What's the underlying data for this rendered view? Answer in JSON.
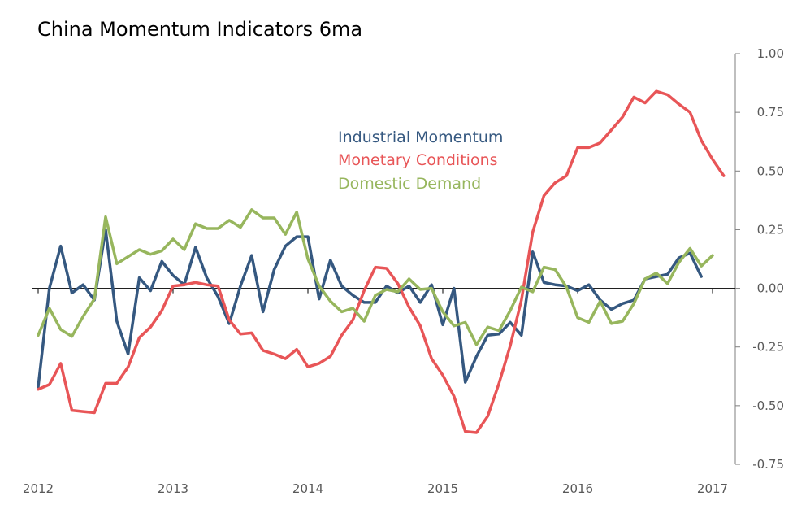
{
  "chart_data": {
    "type": "line",
    "title": "China Momentum Indicators 6ma",
    "xlabel": "",
    "ylabel": "",
    "x_ticks": [
      "2012",
      "2013",
      "2014",
      "2015",
      "2016",
      "2017"
    ],
    "x_range": [
      "2012-01",
      "2017-01"
    ],
    "y_ticks": [
      "1.00",
      "0.75",
      "0.50",
      "0.25",
      "0.00",
      "-0.25",
      "-0.50",
      "-0.75"
    ],
    "ylim": [
      -0.75,
      1.0
    ],
    "y_axis_side": "right",
    "grid": false,
    "legend_placement": "top-center",
    "series": [
      {
        "name": "Industrial Momentum",
        "color": "#355880",
        "points": [
          [
            "2012-01",
            -0.42
          ],
          [
            "2012-02",
            0.0
          ],
          [
            "2012-03",
            0.18
          ],
          [
            "2012-04",
            -0.02
          ],
          [
            "2012-05",
            0.015
          ],
          [
            "2012-06",
            -0.05
          ],
          [
            "2012-07",
            0.25
          ],
          [
            "2012-08",
            -0.14
          ],
          [
            "2012-09",
            -0.28
          ],
          [
            "2012-10",
            0.045
          ],
          [
            "2012-11",
            -0.01
          ],
          [
            "2012-12",
            0.115
          ],
          [
            "2013-01",
            0.055
          ],
          [
            "2013-02",
            0.015
          ],
          [
            "2013-03",
            0.175
          ],
          [
            "2013-04",
            0.045
          ],
          [
            "2013-05",
            -0.035
          ],
          [
            "2013-06",
            -0.15
          ],
          [
            "2013-07",
            0.01
          ],
          [
            "2013-08",
            0.14
          ],
          [
            "2013-09",
            -0.1
          ],
          [
            "2013-10",
            0.08
          ],
          [
            "2013-11",
            0.18
          ],
          [
            "2013-12",
            0.22
          ],
          [
            "2014-01",
            0.22
          ],
          [
            "2014-02",
            -0.045
          ],
          [
            "2014-03",
            0.12
          ],
          [
            "2014-04",
            0.01
          ],
          [
            "2014-05",
            -0.03
          ],
          [
            "2014-06",
            -0.06
          ],
          [
            "2014-07",
            -0.06
          ],
          [
            "2014-08",
            0.01
          ],
          [
            "2014-09",
            -0.02
          ],
          [
            "2014-10",
            0.01
          ],
          [
            "2014-11",
            -0.06
          ],
          [
            "2014-12",
            0.015
          ],
          [
            "2015-01",
            -0.155
          ],
          [
            "2015-02",
            0.0
          ],
          [
            "2015-03",
            -0.4
          ],
          [
            "2015-04",
            -0.29
          ],
          [
            "2015-05",
            -0.2
          ],
          [
            "2015-06",
            -0.195
          ],
          [
            "2015-07",
            -0.145
          ],
          [
            "2015-08",
            -0.2
          ],
          [
            "2015-09",
            0.155
          ],
          [
            "2015-10",
            0.025
          ],
          [
            "2015-11",
            0.015
          ],
          [
            "2015-12",
            0.01
          ],
          [
            "2016-01",
            -0.01
          ],
          [
            "2016-02",
            0.015
          ],
          [
            "2016-03",
            -0.05
          ],
          [
            "2016-04",
            -0.09
          ],
          [
            "2016-05",
            -0.065
          ],
          [
            "2016-06",
            -0.05
          ],
          [
            "2016-07",
            0.04
          ],
          [
            "2016-08",
            0.05
          ],
          [
            "2016-09",
            0.06
          ],
          [
            "2016-10",
            0.13
          ],
          [
            "2016-11",
            0.15
          ],
          [
            "2016-12",
            0.05
          ]
        ]
      },
      {
        "name": "Monetary Conditions",
        "color": "#E85557",
        "points": [
          [
            "2012-01",
            -0.43
          ],
          [
            "2012-02",
            -0.41
          ],
          [
            "2012-03",
            -0.32
          ],
          [
            "2012-04",
            -0.52
          ],
          [
            "2012-05",
            -0.525
          ],
          [
            "2012-06",
            -0.53
          ],
          [
            "2012-07",
            -0.405
          ],
          [
            "2012-08",
            -0.405
          ],
          [
            "2012-09",
            -0.335
          ],
          [
            "2012-10",
            -0.21
          ],
          [
            "2012-11",
            -0.165
          ],
          [
            "2012-12",
            -0.095
          ],
          [
            "2013-01",
            0.01
          ],
          [
            "2013-02",
            0.015
          ],
          [
            "2013-03",
            0.025
          ],
          [
            "2013-04",
            0.015
          ],
          [
            "2013-05",
            0.01
          ],
          [
            "2013-06",
            -0.135
          ],
          [
            "2013-07",
            -0.195
          ],
          [
            "2013-08",
            -0.19
          ],
          [
            "2013-09",
            -0.265
          ],
          [
            "2013-10",
            -0.28
          ],
          [
            "2013-11",
            -0.3
          ],
          [
            "2013-12",
            -0.26
          ],
          [
            "2014-01",
            -0.335
          ],
          [
            "2014-02",
            -0.32
          ],
          [
            "2014-03",
            -0.29
          ],
          [
            "2014-04",
            -0.2
          ],
          [
            "2014-05",
            -0.135
          ],
          [
            "2014-06",
            -0.01
          ],
          [
            "2014-07",
            0.09
          ],
          [
            "2014-08",
            0.085
          ],
          [
            "2014-09",
            0.02
          ],
          [
            "2014-10",
            -0.08
          ],
          [
            "2014-11",
            -0.16
          ],
          [
            "2014-12",
            -0.3
          ],
          [
            "2015-01",
            -0.37
          ],
          [
            "2015-02",
            -0.46
          ],
          [
            "2015-03",
            -0.61
          ],
          [
            "2015-04",
            -0.615
          ],
          [
            "2015-05",
            -0.545
          ],
          [
            "2015-06",
            -0.405
          ],
          [
            "2015-07",
            -0.245
          ],
          [
            "2015-08",
            -0.05
          ],
          [
            "2015-09",
            0.24
          ],
          [
            "2015-10",
            0.395
          ],
          [
            "2015-11",
            0.45
          ],
          [
            "2015-12",
            0.48
          ],
          [
            "2016-01",
            0.6
          ],
          [
            "2016-02",
            0.6
          ],
          [
            "2016-03",
            0.62
          ],
          [
            "2016-04",
            0.675
          ],
          [
            "2016-05",
            0.73
          ],
          [
            "2016-06",
            0.815
          ],
          [
            "2016-07",
            0.79
          ],
          [
            "2016-08",
            0.84
          ],
          [
            "2016-09",
            0.825
          ],
          [
            "2016-10",
            0.785
          ],
          [
            "2016-11",
            0.75
          ],
          [
            "2016-12",
            0.63
          ],
          [
            "2017-01",
            0.55
          ],
          [
            "2017-02",
            0.48
          ]
        ]
      },
      {
        "name": "Domestic Demand",
        "color": "#97B65D",
        "points": [
          [
            "2012-01",
            -0.2
          ],
          [
            "2012-02",
            -0.085
          ],
          [
            "2012-03",
            -0.175
          ],
          [
            "2012-04",
            -0.205
          ],
          [
            "2012-05",
            -0.12
          ],
          [
            "2012-06",
            -0.045
          ],
          [
            "2012-07",
            0.305
          ],
          [
            "2012-08",
            0.105
          ],
          [
            "2012-09",
            0.135
          ],
          [
            "2012-10",
            0.165
          ],
          [
            "2012-11",
            0.145
          ],
          [
            "2012-12",
            0.16
          ],
          [
            "2013-01",
            0.21
          ],
          [
            "2013-02",
            0.165
          ],
          [
            "2013-03",
            0.275
          ],
          [
            "2013-04",
            0.255
          ],
          [
            "2013-05",
            0.255
          ],
          [
            "2013-06",
            0.29
          ],
          [
            "2013-07",
            0.26
          ],
          [
            "2013-08",
            0.335
          ],
          [
            "2013-09",
            0.3
          ],
          [
            "2013-10",
            0.3
          ],
          [
            "2013-11",
            0.23
          ],
          [
            "2013-12",
            0.325
          ],
          [
            "2014-01",
            0.125
          ],
          [
            "2014-02",
            0.01
          ],
          [
            "2014-03",
            -0.055
          ],
          [
            "2014-04",
            -0.1
          ],
          [
            "2014-05",
            -0.085
          ],
          [
            "2014-06",
            -0.14
          ],
          [
            "2014-07",
            -0.03
          ],
          [
            "2014-08",
            -0.005
          ],
          [
            "2014-09",
            -0.015
          ],
          [
            "2014-10",
            0.04
          ],
          [
            "2014-11",
            -0.005
          ],
          [
            "2014-12",
            0.0
          ],
          [
            "2015-01",
            -0.1
          ],
          [
            "2015-02",
            -0.16
          ],
          [
            "2015-03",
            -0.145
          ],
          [
            "2015-04",
            -0.24
          ],
          [
            "2015-05",
            -0.165
          ],
          [
            "2015-06",
            -0.18
          ],
          [
            "2015-07",
            -0.095
          ],
          [
            "2015-08",
            0.005
          ],
          [
            "2015-09",
            -0.015
          ],
          [
            "2015-10",
            0.09
          ],
          [
            "2015-11",
            0.08
          ],
          [
            "2015-12",
            0.005
          ],
          [
            "2016-01",
            -0.125
          ],
          [
            "2016-02",
            -0.145
          ],
          [
            "2016-03",
            -0.055
          ],
          [
            "2016-04",
            -0.15
          ],
          [
            "2016-05",
            -0.14
          ],
          [
            "2016-06",
            -0.065
          ],
          [
            "2016-07",
            0.04
          ],
          [
            "2016-08",
            0.065
          ],
          [
            "2016-09",
            0.02
          ],
          [
            "2016-10",
            0.11
          ],
          [
            "2016-11",
            0.17
          ],
          [
            "2016-12",
            0.095
          ],
          [
            "2017-01",
            0.14
          ]
        ]
      }
    ]
  }
}
